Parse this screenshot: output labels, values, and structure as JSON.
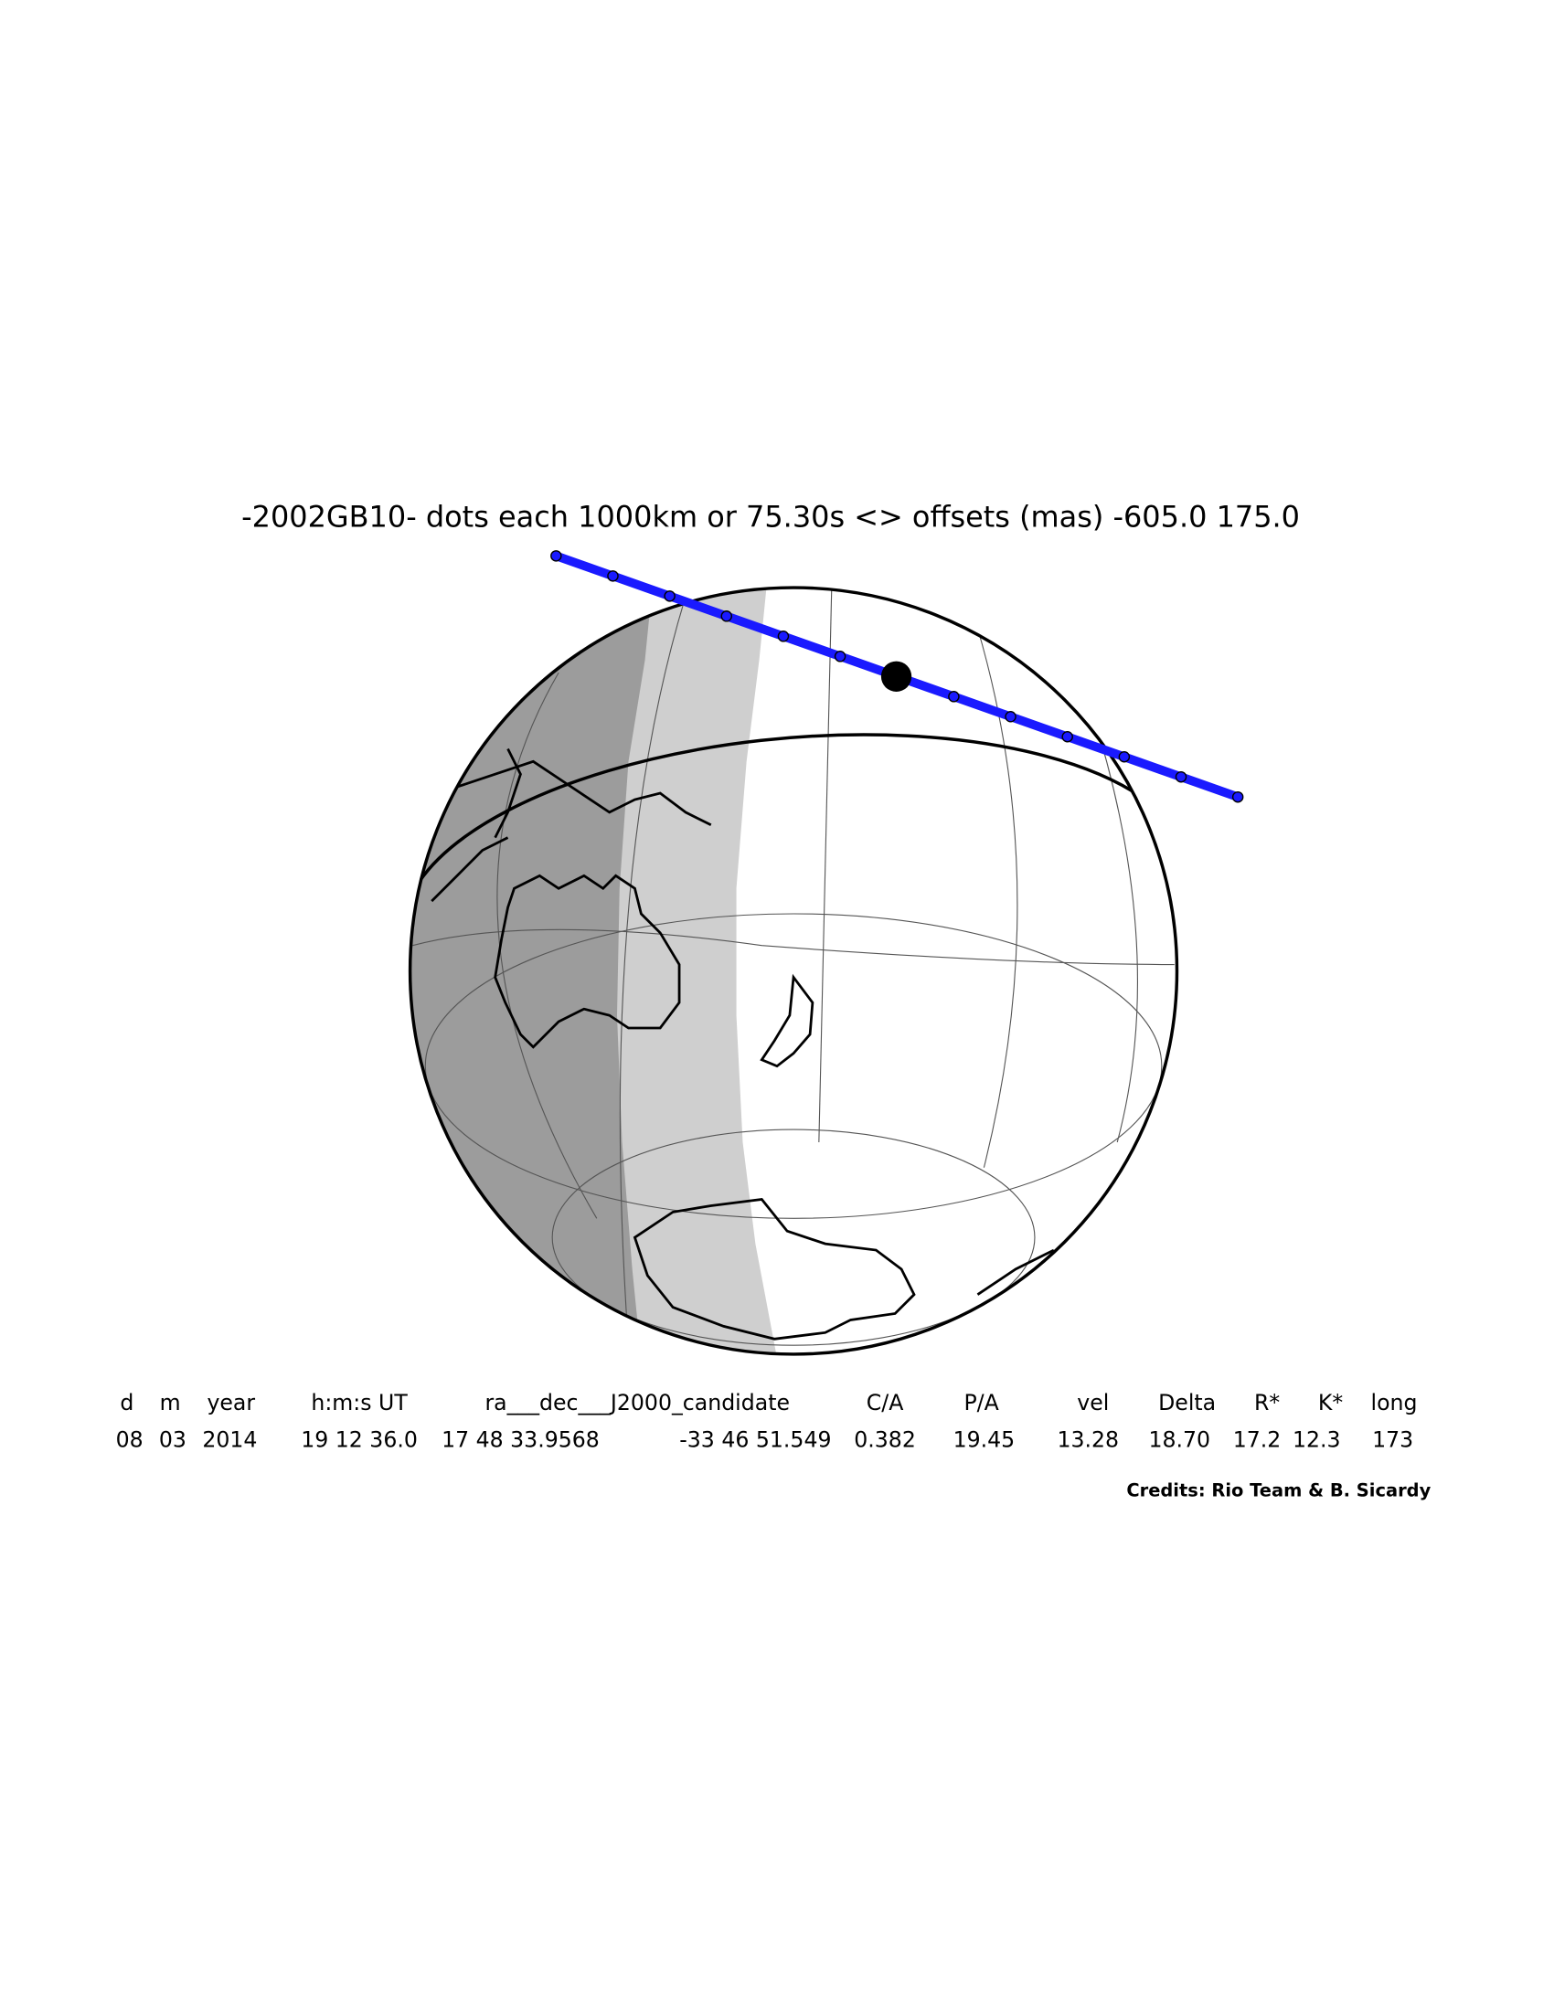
{
  "title": "-2002GB10- dots each 1000km or 75.30s <> offsets (mas) -605.0   175.0",
  "table": {
    "headers": [
      "d",
      "m",
      "year",
      "h:m:s UT",
      "ra___dec___J2000_candidate",
      "C/A",
      "P/A",
      "vel",
      "Delta",
      "R*",
      "K*",
      "long"
    ],
    "values": [
      "08",
      "03",
      "2014",
      "19 12 36.0",
      "17 48 33.9568",
      "-33 46 51.549",
      "0.382",
      "19.45",
      "13.28",
      "18.70",
      "17.2",
      "12.3",
      "173"
    ]
  },
  "credits": "Credits: Rio Team & B. Sicardy"
}
